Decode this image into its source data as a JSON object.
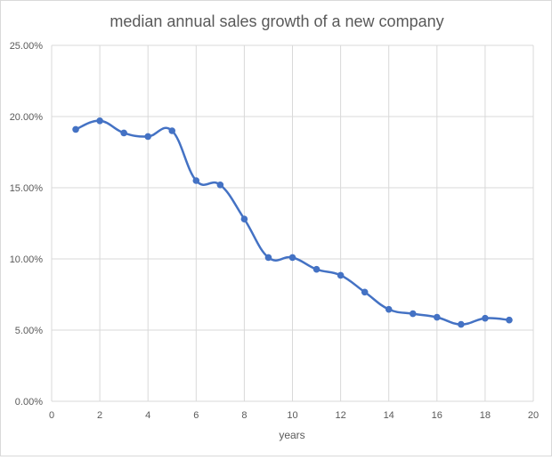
{
  "chart_data": {
    "type": "line",
    "title": "median annual sales growth of a new company",
    "xlabel": "years",
    "ylabel": "",
    "xlim": [
      0,
      20
    ],
    "ylim": [
      0,
      0.25
    ],
    "x_ticks": [
      "0",
      "2",
      "4",
      "6",
      "8",
      "10",
      "12",
      "14",
      "16",
      "18",
      "20"
    ],
    "y_ticks": [
      "0.00%",
      "5.00%",
      "10.00%",
      "15.00%",
      "20.00%",
      "25.00%"
    ],
    "grid": true,
    "smoothed": true,
    "markers": true,
    "color": "#4472c4",
    "x": [
      1,
      2,
      3,
      4,
      5,
      6,
      7,
      8,
      9,
      10,
      11,
      12,
      13,
      14,
      15,
      16,
      17,
      18,
      19
    ],
    "values": [
      0.191,
      0.197,
      0.1885,
      0.186,
      0.19,
      0.155,
      0.152,
      0.128,
      0.101,
      0.101,
      0.0927,
      0.0885,
      0.0767,
      0.0646,
      0.0615,
      0.059,
      0.054,
      0.0583,
      0.0571
    ]
  }
}
